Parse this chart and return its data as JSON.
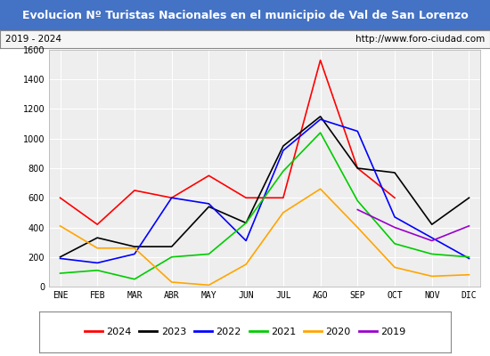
{
  "title": "Evolucion Nº Turistas Nacionales en el municipio de Val de San Lorenzo",
  "subtitle_left": "2019 - 2024",
  "subtitle_right": "http://www.foro-ciudad.com",
  "months": [
    "ENE",
    "FEB",
    "MAR",
    "ABR",
    "MAY",
    "JUN",
    "JUL",
    "AGO",
    "SEP",
    "OCT",
    "NOV",
    "DIC"
  ],
  "series": {
    "2024": {
      "color": "#ff0000",
      "data": [
        600,
        420,
        650,
        600,
        750,
        600,
        600,
        1530,
        800,
        600,
        null,
        null
      ]
    },
    "2023": {
      "color": "#000000",
      "data": [
        200,
        330,
        270,
        270,
        540,
        430,
        950,
        1150,
        800,
        770,
        420,
        600
      ]
    },
    "2022": {
      "color": "#0000ff",
      "data": [
        190,
        160,
        220,
        600,
        560,
        310,
        920,
        1130,
        1050,
        470,
        330,
        190
      ]
    },
    "2021": {
      "color": "#00cc00",
      "data": [
        90,
        110,
        50,
        200,
        220,
        430,
        780,
        1040,
        580,
        290,
        220,
        200
      ]
    },
    "2020": {
      "color": "#ffa500",
      "data": [
        410,
        260,
        260,
        30,
        10,
        150,
        500,
        660,
        400,
        130,
        70,
        80
      ]
    },
    "2019": {
      "color": "#9900cc",
      "data": [
        null,
        null,
        null,
        null,
        null,
        null,
        null,
        null,
        520,
        400,
        310,
        410
      ]
    }
  },
  "ylim": [
    0,
    1600
  ],
  "yticks": [
    0,
    200,
    400,
    600,
    800,
    1000,
    1200,
    1400,
    1600
  ],
  "title_bg_color": "#4472c4",
  "title_text_color": "#ffffff",
  "plot_bg_color": "#eeeeee",
  "grid_color": "#ffffff",
  "subtitle_box_color": "#f5f5f5",
  "legend_order": [
    "2024",
    "2023",
    "2022",
    "2021",
    "2020",
    "2019"
  ]
}
